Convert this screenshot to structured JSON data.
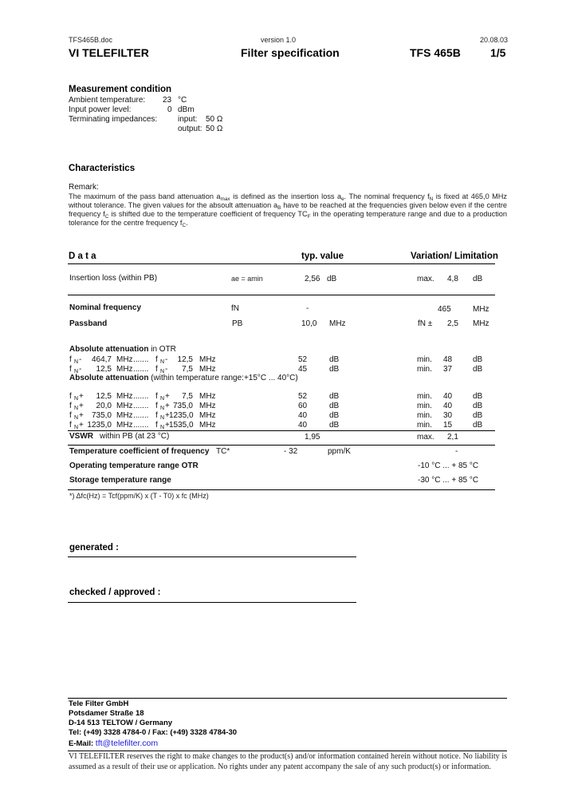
{
  "header": {
    "filename": "TFS465B.doc",
    "version": "version 1.0",
    "date": "20.08.03",
    "brand": "VI  TELEFILTER",
    "title": "Filter specification",
    "product": "TFS 465B",
    "page": "1/5"
  },
  "measurement": {
    "heading": "Measurement condition",
    "ambient_label": "Ambient temperature:",
    "ambient_value": "23",
    "ambient_unit": "°C",
    "power_label": "Input power level:",
    "power_value": "0",
    "power_unit": "dBm",
    "imp_label": "Terminating impedances:",
    "input_label": "input:",
    "input_value": "50 Ω",
    "output_label": "output:",
    "output_value": "50 Ω"
  },
  "characteristics": {
    "heading": "Characteristics",
    "remark_label": "Remark:",
    "remark": [
      {
        "t": "The maximum of the pass band attenuation a"
      },
      {
        "t": "max",
        "sub": true
      },
      {
        "t": " is defined as the insertion loss a"
      },
      {
        "t": "e",
        "sub": true
      },
      {
        "t": ". The nominal frequency f"
      },
      {
        "t": "N",
        "sub": true
      },
      {
        "t": " is fixed at 465,0 MHz without tolerance. The given values for the absoult attenuation a"
      },
      {
        "t": "B",
        "sub": true
      },
      {
        "t": " have to be reached at the frequencies given below even if the centre frequency f"
      },
      {
        "t": "C",
        "sub": true
      },
      {
        "t": " is shifted due to the temperature coefficient of frequency TC"
      },
      {
        "t": "F",
        "sub": true
      },
      {
        "t": " in the operating temperature range and due to a production tolerance for the centre frequency f"
      },
      {
        "t": "C",
        "sub": true
      },
      {
        "t": "."
      }
    ]
  },
  "table": {
    "col_data": "D a t a",
    "col_typ": "typ. value",
    "col_var": "Variation/ Limitation",
    "insertion": {
      "label": "Insertion loss (within PB)",
      "symbol": "ae = amin",
      "typ": "2,56",
      "typ_unit": "dB",
      "lim_kind": "max.",
      "lim": "4,8",
      "lim_unit": "dB"
    },
    "nominal": {
      "label": "Nominal frequency",
      "symbol": "fN",
      "typ": "-",
      "lim": "465",
      "lim_unit": "MHz"
    },
    "passband": {
      "label": "Passband",
      "symbol": "PB",
      "typ": "10,0",
      "typ_unit": "MHz",
      "lim_kind": "fN  ±",
      "lim": "2,5",
      "lim_unit": "MHz"
    },
    "otr_heading": "Absolute attenuation",
    "otr_heading_suffix": " in OTR",
    "otr_rows": [
      {
        "sign1": "-",
        "from": "464,7",
        "sign2": "-",
        "to": "12,5",
        "typ": "52",
        "lim": "48"
      },
      {
        "sign1": "-",
        "from": "12,5",
        "sign2": "-",
        "to": "7,5",
        "typ": "45",
        "lim": "37"
      }
    ],
    "temp_heading": "Absolute attenuation",
    "temp_heading_suffix": " (within temperature range:+15°C ... 40°C)",
    "temp_rows": [
      {
        "sign1": "+",
        "from": "12,5",
        "sign2": "+",
        "to": "7,5",
        "typ": "52",
        "lim": "40"
      },
      {
        "sign1": "+",
        "from": "20,0",
        "sign2": "+",
        "to": "735,0",
        "typ": "60",
        "lim": "40"
      },
      {
        "sign1": "+",
        "from": "735,0",
        "sign2": "+",
        "to": "1235,0",
        "typ": "40",
        "lim": "30"
      },
      {
        "sign1": "+",
        "from": "1235,0",
        "sign2": "+",
        "to": "1535,0",
        "typ": "40",
        "lim": "15"
      }
    ],
    "unit_mhz": "MHz",
    "unit_db": "dB",
    "dots": ".......",
    "f": "f",
    "n": "N",
    "min": "min.",
    "vswr": {
      "label": "VSWR",
      "desc": "within PB (at 23 °C)",
      "typ": "1,95",
      "lim_kind": "max.",
      "lim": "2,1"
    },
    "tc": {
      "label": "Temperature coefficient of frequency",
      "symbol": "TC*",
      "typ": "- 32",
      "typ_unit": "ppm/K",
      "lim": "-"
    },
    "otr": {
      "label": "Operating temperature range OTR",
      "lim": "-10 °C ... +  85 °C"
    },
    "storage": {
      "label": "Storage temperature range",
      "lim": "-30 °C ... +  85 °C"
    },
    "footnote": "*)    Δfc(Hz) = Tcf(ppm/K) x (T - T0) x fc (MHz)"
  },
  "signoff": {
    "generated": "generated      :",
    "checked": "checked / approved  :"
  },
  "footer": {
    "company": "Tele Filter GmbH",
    "street": "Potsdamer Straße 18",
    "city": "D-14 513 TELTOW / Germany",
    "phone": "Tel: (+49) 3328 4784-0 / Fax: (+49) 3328 4784-30",
    "email_label": "E-Mail: ",
    "email": "tft@telefilter.com",
    "disclaimer": "VI TELEFILTER reserves the right to make changes to the product(s) and/or information contained herein without notice.  No liability is assumed as a result of their use or application.  No rights under any patent accompany the sale of any such product(s) or information."
  }
}
